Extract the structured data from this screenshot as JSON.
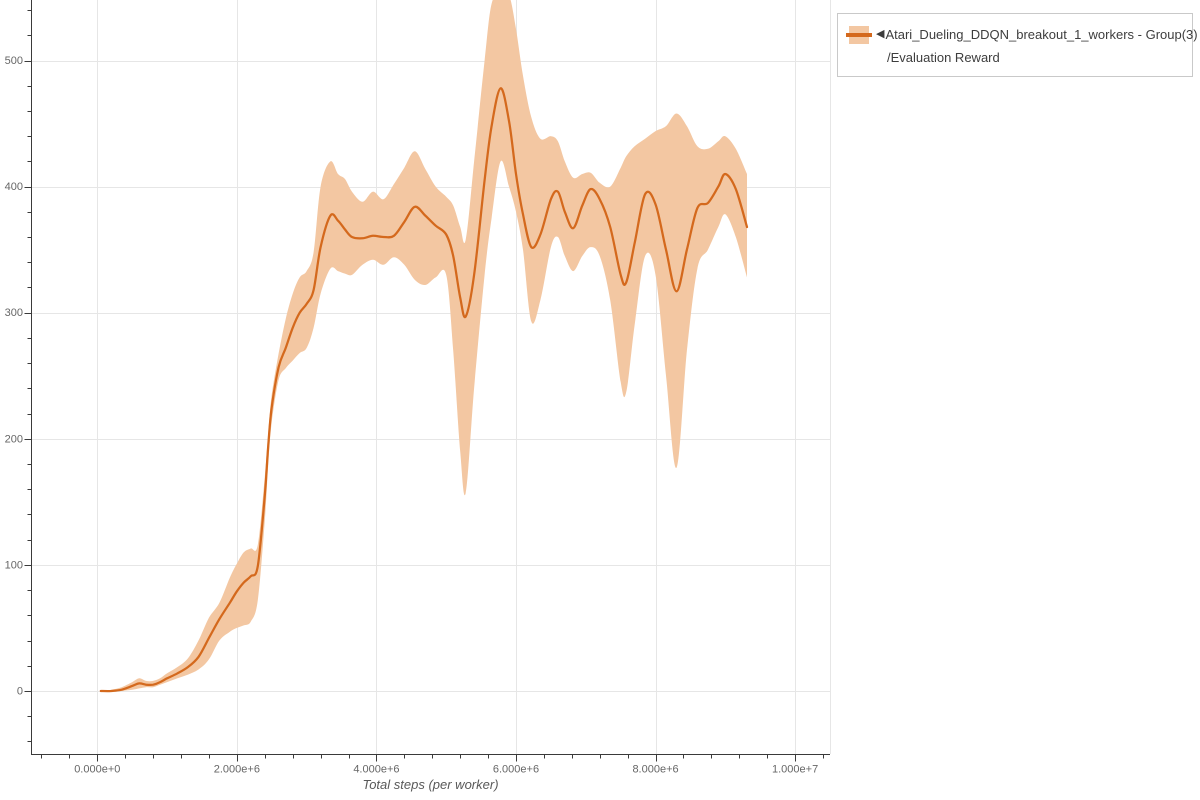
{
  "page": {
    "background": "#ffffff"
  },
  "legend": {
    "collapse_icon": "◀",
    "series_name": "Atari_Dueling_DDQN_breakout_1_workers - Group(3)",
    "metric": "/Evaluation Reward"
  },
  "chart_data": {
    "type": "line",
    "title": "",
    "xlabel": "Total steps (per worker)",
    "ylabel": "",
    "legend_position": "top-right-outside",
    "grid": true,
    "xlim": [
      -950000,
      10500000
    ],
    "ylim": [
      -50,
      548
    ],
    "x_ticks": [
      {
        "v": 0,
        "label": "0.000e+0"
      },
      {
        "v": 2000000,
        "label": "2.000e+6"
      },
      {
        "v": 4000000,
        "label": "4.000e+6"
      },
      {
        "v": 6000000,
        "label": "6.000e+6"
      },
      {
        "v": 8000000,
        "label": "8.000e+6"
      },
      {
        "v": 10000000,
        "label": "1.000e+7"
      }
    ],
    "y_ticks": [
      {
        "v": 0,
        "label": "0"
      },
      {
        "v": 100,
        "label": "100"
      },
      {
        "v": 200,
        "label": "200"
      },
      {
        "v": 300,
        "label": "300"
      },
      {
        "v": 400,
        "label": "400"
      },
      {
        "v": 500,
        "label": "500"
      }
    ],
    "x_minor_step": 400000,
    "x_major_step": 2000000,
    "y_minor_step": 20,
    "y_major_step": 100,
    "colors": {
      "line": "#d4691d",
      "band": "#f3c7a2",
      "grid": "#e6e6e6",
      "axis": "#3a3a3a",
      "tick_label": "#666666",
      "legend_border": "#c9c9c9",
      "legend_text": "#3d3d3d"
    },
    "series": [
      {
        "name": "Atari_Dueling_DDQN_breakout_1_workers - Group(3)/Evaluation Reward",
        "x": [
          50000,
          200000,
          350000,
          500000,
          600000,
          700000,
          800000,
          900000,
          1000000,
          1150000,
          1300000,
          1450000,
          1600000,
          1750000,
          1900000,
          2000000,
          2100000,
          2200000,
          2300000,
          2400000,
          2450000,
          2500000,
          2600000,
          2700000,
          2800000,
          2900000,
          3000000,
          3100000,
          3200000,
          3340000,
          3450000,
          3550000,
          3650000,
          3800000,
          3950000,
          4100000,
          4250000,
          4400000,
          4550000,
          4700000,
          4850000,
          5000000,
          5100000,
          5200000,
          5280000,
          5400000,
          5550000,
          5650000,
          5780000,
          5900000,
          6000000,
          6100000,
          6220000,
          6350000,
          6500000,
          6600000,
          6700000,
          6820000,
          6950000,
          7070000,
          7200000,
          7350000,
          7500000,
          7580000,
          7700000,
          7850000,
          8000000,
          8150000,
          8300000,
          8450000,
          8600000,
          8750000,
          8900000,
          9000000,
          9150000,
          9310000
        ],
        "mean": [
          0,
          0,
          1,
          4,
          6,
          5,
          5,
          7,
          10,
          14,
          19,
          27,
          42,
          57,
          70,
          79,
          86,
          91,
          99,
          155,
          195,
          225,
          257,
          272,
          288,
          300,
          307,
          318,
          352,
          377,
          373,
          366,
          360,
          359,
          361,
          360,
          361,
          372,
          384,
          377,
          369,
          362,
          345,
          312,
          297,
          330,
          405,
          448,
          478,
          452,
          410,
          378,
          352,
          362,
          390,
          396,
          380,
          367,
          385,
          398,
          390,
          368,
          330,
          324,
          355,
          394,
          386,
          350,
          317,
          350,
          383,
          387,
          400,
          410,
          398,
          368
        ],
        "lo": [
          0,
          0,
          0,
          1,
          2,
          3,
          3,
          5,
          7,
          10,
          13,
          17,
          25,
          40,
          47,
          50,
          52,
          55,
          72,
          135,
          180,
          213,
          247,
          256,
          262,
          268,
          272,
          288,
          315,
          335,
          333,
          331,
          330,
          338,
          342,
          338,
          344,
          338,
          326,
          322,
          328,
          330,
          270,
          190,
          157,
          240,
          330,
          375,
          420,
          400,
          380,
          350,
          293,
          310,
          352,
          360,
          345,
          333,
          345,
          352,
          345,
          310,
          245,
          237,
          290,
          345,
          330,
          250,
          177,
          270,
          335,
          350,
          368,
          378,
          360,
          328
        ],
        "hi": [
          0,
          1,
          3,
          7,
          10,
          8,
          8,
          10,
          14,
          19,
          26,
          40,
          58,
          70,
          90,
          101,
          110,
          113,
          116,
          170,
          205,
          235,
          268,
          295,
          315,
          328,
          333,
          348,
          400,
          420,
          410,
          406,
          396,
          388,
          396,
          390,
          402,
          415,
          428,
          414,
          400,
          392,
          385,
          368,
          358,
          420,
          500,
          545,
          553,
          552,
          525,
          488,
          455,
          438,
          440,
          436,
          420,
          407,
          410,
          411,
          403,
          400,
          415,
          424,
          432,
          438,
          444,
          448,
          458,
          448,
          432,
          430,
          436,
          440,
          430,
          410
        ]
      }
    ]
  }
}
